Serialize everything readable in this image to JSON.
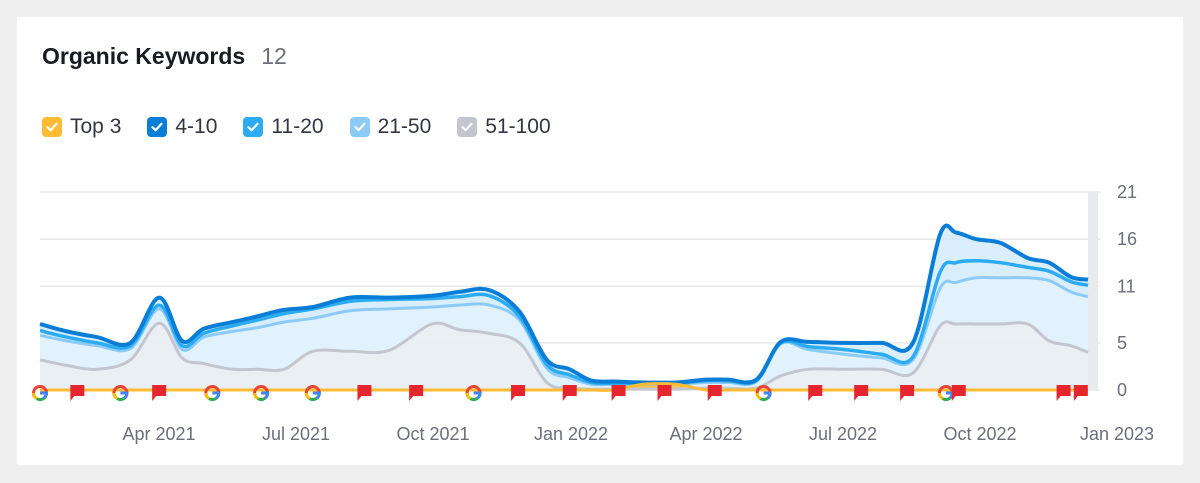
{
  "widget": {
    "title": "Organic Keywords",
    "count": "12"
  },
  "legend": [
    {
      "label": "Top 3",
      "color": "#ffbb33",
      "checked": true
    },
    {
      "label": "4-10",
      "color": "#0a7ed6",
      "checked": true
    },
    {
      "label": "11-20",
      "color": "#2bacf2",
      "checked": true
    },
    {
      "label": "21-50",
      "color": "#8ccbf7",
      "checked": true
    },
    {
      "label": "51-100",
      "color": "#c3c6cf",
      "checked": true
    }
  ],
  "chart_data": {
    "type": "area",
    "stacked": true,
    "x_ticks": [
      "Apr 2021",
      "Jul 2021",
      "Oct 2021",
      "Jan 2022",
      "Apr 2022",
      "Jul 2022",
      "Oct 2022",
      "Jan 2023"
    ],
    "y_ticks": [
      0,
      5,
      11,
      16,
      21
    ],
    "ylim": [
      0,
      21
    ],
    "y_axis_position": "right",
    "grid": true,
    "x": [
      "2021-01-01",
      "2021-01-20",
      "2021-02-10",
      "2021-03-05",
      "2021-03-25",
      "2021-04-10",
      "2021-04-25",
      "2021-05-15",
      "2021-06-01",
      "2021-06-20",
      "2021-07-10",
      "2021-08-05",
      "2021-09-01",
      "2021-10-01",
      "2021-10-20",
      "2021-11-10",
      "2021-12-01",
      "2021-12-20",
      "2022-01-05",
      "2022-01-20",
      "2022-02-05",
      "2022-02-25",
      "2022-03-20",
      "2022-04-10",
      "2022-04-25",
      "2022-05-15",
      "2022-06-01",
      "2022-06-20",
      "2022-07-15",
      "2022-08-10",
      "2022-09-01",
      "2022-09-20",
      "2022-10-01",
      "2022-10-15",
      "2022-11-01",
      "2022-11-20",
      "2022-12-05",
      "2022-12-20",
      "2023-01-01"
    ],
    "cumulative_series": [
      {
        "name": "Top 3",
        "values": [
          0,
          0,
          0,
          0,
          0,
          0,
          0,
          0,
          0,
          0,
          0,
          0,
          0,
          0,
          0,
          0,
          0,
          0,
          0,
          0,
          0,
          0.6,
          0.6,
          0,
          0,
          0,
          0,
          0,
          0,
          0,
          0,
          0,
          0,
          0,
          0,
          0,
          0,
          0,
          0
        ]
      },
      {
        "name": "4-10",
        "values": [
          7,
          6.2,
          5.6,
          5.0,
          9.8,
          5.2,
          6.5,
          7.2,
          7.8,
          8.5,
          8.8,
          9.8,
          9.8,
          10.0,
          10.4,
          10.6,
          8.3,
          3.2,
          2.2,
          1.0,
          0.9,
          0.8,
          0.8,
          1.1,
          1.1,
          1.1,
          5.1,
          5.1,
          5.0,
          5.0,
          5.0,
          16.5,
          16.7,
          16.0,
          15.6,
          14.0,
          13.5,
          12.0,
          11.7
        ]
      },
      {
        "name": "11-20",
        "values": [
          6.3,
          5.6,
          5.0,
          4.7,
          9.0,
          4.7,
          6.0,
          6.8,
          7.4,
          8.1,
          8.6,
          9.4,
          9.6,
          9.7,
          9.9,
          10.0,
          7.8,
          2.7,
          1.6,
          0.8,
          0.7,
          0.7,
          0.7,
          1.0,
          1.0,
          1.0,
          5.0,
          4.6,
          4.3,
          3.8,
          3.5,
          12.5,
          13.5,
          13.7,
          13.5,
          13.0,
          12.6,
          11.5,
          11.1
        ]
      },
      {
        "name": "21-50",
        "values": [
          5.8,
          5.2,
          4.7,
          4.4,
          8.6,
          4.3,
          5.6,
          6.2,
          6.6,
          7.2,
          7.6,
          8.4,
          8.6,
          8.8,
          9.0,
          9.0,
          7.4,
          2.3,
          1.3,
          0.6,
          0.6,
          0.6,
          0.6,
          0.8,
          0.8,
          0.9,
          4.9,
          4.3,
          3.8,
          3.4,
          3.2,
          10.8,
          11.4,
          11.9,
          11.9,
          11.9,
          11.6,
          10.4,
          9.9
        ]
      },
      {
        "name": "51-100",
        "values": [
          3.2,
          2.6,
          2.2,
          3.2,
          7.1,
          3.4,
          2.8,
          2.2,
          2.2,
          2.2,
          4.1,
          4.1,
          4.2,
          7.0,
          6.4,
          6.0,
          5.0,
          0.8,
          0.2,
          0.1,
          0.1,
          0.1,
          0.1,
          0.2,
          0.2,
          0.2,
          1.5,
          2.2,
          2.2,
          2.2,
          1.8,
          6.8,
          7.0,
          7.0,
          7.0,
          7.0,
          5.2,
          4.7,
          4.0
        ]
      }
    ],
    "event_markers": [
      {
        "type": "google",
        "date": "2021-01-01"
      },
      {
        "type": "flag",
        "date": "2021-01-27"
      },
      {
        "type": "google",
        "date": "2021-02-26"
      },
      {
        "type": "flag",
        "date": "2021-03-25"
      },
      {
        "type": "google",
        "date": "2021-05-01"
      },
      {
        "type": "google",
        "date": "2021-06-04"
      },
      {
        "type": "google",
        "date": "2021-07-10"
      },
      {
        "type": "flag",
        "date": "2021-08-15"
      },
      {
        "type": "flag",
        "date": "2021-09-20"
      },
      {
        "type": "google",
        "date": "2021-10-30"
      },
      {
        "type": "flag",
        "date": "2021-11-30"
      },
      {
        "type": "flag",
        "date": "2022-01-05"
      },
      {
        "type": "flag",
        "date": "2022-02-08"
      },
      {
        "type": "flag",
        "date": "2022-03-12"
      },
      {
        "type": "flag",
        "date": "2022-04-16"
      },
      {
        "type": "google",
        "date": "2022-05-20"
      },
      {
        "type": "flag",
        "date": "2022-06-25"
      },
      {
        "type": "flag",
        "date": "2022-07-27"
      },
      {
        "type": "flag",
        "date": "2022-08-28"
      },
      {
        "type": "google",
        "date": "2022-09-24"
      },
      {
        "type": "flag",
        "date": "2022-10-03"
      },
      {
        "type": "flag",
        "date": "2022-12-15"
      },
      {
        "type": "flag",
        "date": "2022-12-27"
      }
    ],
    "colors": {
      "top3": "#ffbb33",
      "pos4_10": "#0a7ed6",
      "pos11_20": "#2bacf2",
      "pos21_50": "#8ccbf7",
      "pos51_100": "#c3c6cf",
      "flag": "#e5262f",
      "grid": "#e6e7ea"
    }
  }
}
